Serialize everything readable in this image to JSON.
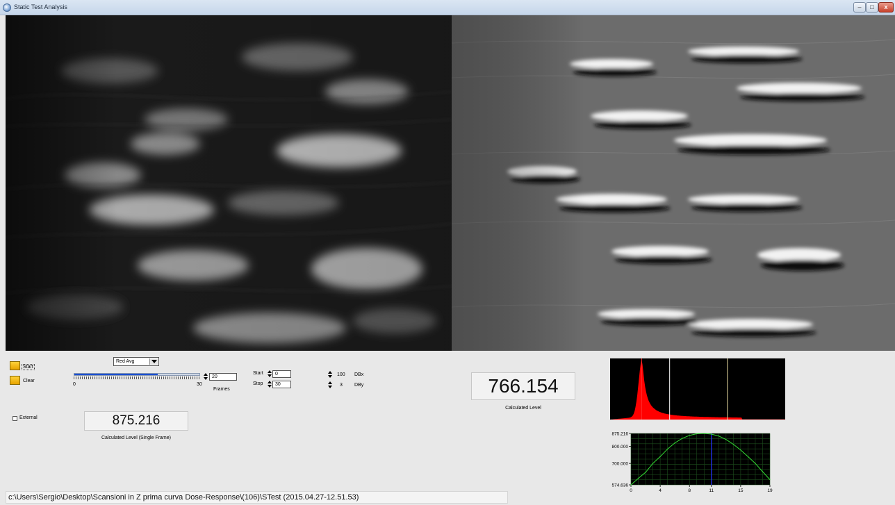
{
  "window": {
    "title": "Static Test Analysis",
    "controls": {
      "minimize": "–",
      "maximize": "□",
      "close": "x"
    }
  },
  "images": {
    "left": {
      "icon": "grayscale-microscopy-image"
    },
    "right": {
      "icon": "embossed-relief-image"
    }
  },
  "controls": {
    "start_label": "Start",
    "clear_label": "Clear",
    "channel_select": {
      "value": "Red Avg"
    },
    "frames_slider": {
      "min": "0",
      "max": "30",
      "value": 20,
      "value_text": "20",
      "label": "Frames"
    },
    "start": {
      "label": "Start",
      "value": "0"
    },
    "stop": {
      "label": "Stop",
      "value": "30"
    },
    "dbx": {
      "value": "100",
      "label": "DBx"
    },
    "dby": {
      "value": "3",
      "label": "DBy"
    },
    "external_label": "External",
    "external_checked": false
  },
  "readouts": {
    "single_frame": {
      "value": "875.216",
      "caption": "Calculated Level (Single Frame)"
    },
    "calculated": {
      "value": "766.154",
      "caption": "Calculated Level"
    }
  },
  "histogram": {
    "background": "#000000",
    "fill_color": "#ff0000",
    "markers": [
      {
        "color": "#ff2a2a",
        "position_fraction": 0.18
      },
      {
        "color": "#ffffff",
        "position_fraction": 0.34
      },
      {
        "color": "#e8d9a0",
        "position_fraction": 0.67
      }
    ]
  },
  "chart_data": {
    "type": "line",
    "title": "",
    "xlabel": "",
    "ylabel": "",
    "x_ticks": [
      "0",
      "4",
      "8",
      "11",
      "15",
      "19"
    ],
    "y_ticks": [
      "875.216",
      "800.000",
      "700.000",
      "574.636"
    ],
    "xlim": [
      0,
      19
    ],
    "ylim": [
      574.636,
      875.216
    ],
    "grid": true,
    "background": "#000000",
    "cursor_x": 11,
    "cursor_color": "#2233ff",
    "series": [
      {
        "color": "#33dd33",
        "x": [
          0,
          1,
          2,
          3,
          4,
          5,
          6,
          7,
          8,
          9,
          10,
          11,
          12,
          13,
          14,
          15,
          16,
          17,
          18,
          19
        ],
        "values": [
          574.6,
          612,
          648,
          700,
          740,
          784,
          820,
          846,
          864,
          873,
          875.2,
          871,
          860,
          840,
          812,
          778,
          740,
          700,
          652,
          605
        ]
      }
    ]
  },
  "status": {
    "path": "c:\\Users\\Sergio\\Desktop\\Scansioni in Z prima curva Dose-Response\\(106)\\STest (2015.04.27-12.51.53)"
  }
}
